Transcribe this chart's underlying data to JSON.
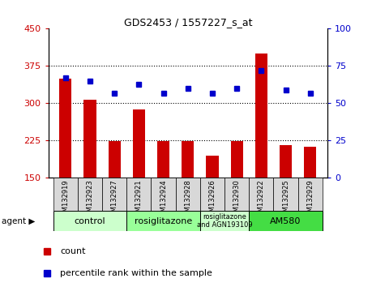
{
  "title": "GDS2453 / 1557227_s_at",
  "samples": [
    "GSM132919",
    "GSM132923",
    "GSM132927",
    "GSM132921",
    "GSM132924",
    "GSM132928",
    "GSM132926",
    "GSM132930",
    "GSM132922",
    "GSM132925",
    "GSM132929"
  ],
  "counts": [
    350,
    307,
    224,
    287,
    224,
    224,
    195,
    224,
    400,
    216,
    213
  ],
  "percentiles": [
    67,
    65,
    57,
    63,
    57,
    60,
    57,
    60,
    72,
    59,
    57
  ],
  "ylim_left": [
    150,
    450
  ],
  "ylim_right": [
    0,
    100
  ],
  "yticks_left": [
    150,
    225,
    300,
    375,
    450
  ],
  "yticks_right": [
    0,
    25,
    50,
    75,
    100
  ],
  "bar_color": "#cc0000",
  "dot_color": "#0000cc",
  "left_tick_color": "#cc0000",
  "right_tick_color": "#0000cc",
  "agent_groups": [
    {
      "label": "control",
      "span": [
        0,
        2
      ],
      "color": "#ccffcc"
    },
    {
      "label": "rosiglitazone",
      "span": [
        3,
        5
      ],
      "color": "#99ff99"
    },
    {
      "label": "rosiglitazone\nand AGN193109",
      "span": [
        6,
        7
      ],
      "color": "#ccffcc"
    },
    {
      "label": "AM580",
      "span": [
        8,
        10
      ],
      "color": "#44dd44"
    }
  ],
  "legend_bar_label": "count",
  "legend_dot_label": "percentile rank within the sample"
}
